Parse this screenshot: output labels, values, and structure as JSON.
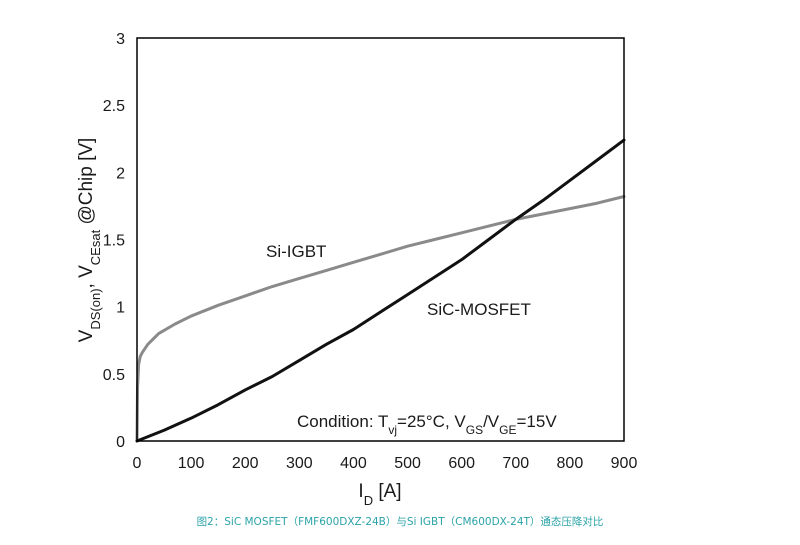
{
  "chart_data": {
    "type": "line",
    "xlim": [
      0,
      900
    ],
    "ylim": [
      0,
      3
    ],
    "x_ticks": [
      0,
      100,
      200,
      300,
      400,
      500,
      600,
      700,
      800,
      900
    ],
    "y_ticks": [
      0,
      0.5,
      1,
      1.5,
      2,
      2.5,
      3
    ],
    "x_tick_labels": [
      "0",
      "100",
      "200",
      "300",
      "400",
      "500",
      "600",
      "700",
      "800",
      "900"
    ],
    "y_tick_labels": [
      "0",
      "0.5",
      "1",
      "1.5",
      "2",
      "2.5",
      "3"
    ],
    "xlabel": {
      "main": "I",
      "sub": "D",
      "rest": " [A]"
    },
    "ylabel": {
      "p1": "V",
      "s1": "DS(on)",
      "p2": ", V",
      "s2": "CEsat",
      "p3": " @Chip [V]"
    },
    "grid": false,
    "series": [
      {
        "name": "Si-IGBT",
        "color": "#8a8a8a",
        "x": [
          0,
          1,
          3,
          6,
          10,
          20,
          40,
          70,
          100,
          150,
          200,
          250,
          300,
          350,
          400,
          450,
          500,
          550,
          600,
          650,
          700,
          750,
          800,
          850,
          900
        ],
        "y": [
          0,
          0.4,
          0.57,
          0.63,
          0.66,
          0.72,
          0.8,
          0.87,
          0.93,
          1.01,
          1.08,
          1.15,
          1.21,
          1.27,
          1.33,
          1.39,
          1.45,
          1.5,
          1.55,
          1.6,
          1.65,
          1.69,
          1.73,
          1.77,
          1.82
        ]
      },
      {
        "name": "SiC-MOSFET",
        "color": "#111111",
        "x": [
          0,
          50,
          100,
          150,
          200,
          250,
          300,
          350,
          400,
          450,
          500,
          550,
          600,
          650,
          700,
          750,
          800,
          850,
          900
        ],
        "y": [
          0,
          0.08,
          0.17,
          0.27,
          0.38,
          0.48,
          0.6,
          0.72,
          0.83,
          0.96,
          1.09,
          1.22,
          1.35,
          1.5,
          1.65,
          1.79,
          1.94,
          2.09,
          2.24
        ]
      }
    ],
    "annotations": {
      "igbt_label": "Si-IGBT",
      "mosfet_label": "SiC-MOSFET",
      "condition": {
        "t1": "Condition: T",
        "s1": "vj",
        "t2": "=25°C, V",
        "s2": "GS",
        "t3": "/V",
        "s3": "GE",
        "t4": "=15V"
      }
    }
  },
  "caption": "图2：SiC MOSFET（FMF600DXZ-24B）与Si IGBT（CM600DX-24T）通态压降对比"
}
